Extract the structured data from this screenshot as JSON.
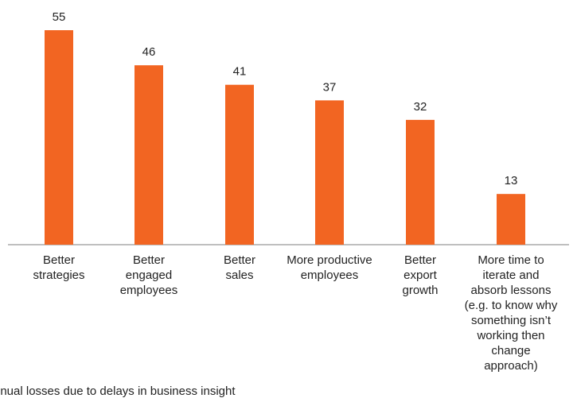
{
  "chart_data": {
    "type": "bar",
    "categories": [
      "Better\nstrategies",
      "Better\nengaged\nemployees",
      "Better\nsales",
      "More productive\nemployees",
      "Better\nexport\ngrowth",
      "More time to\niterate and\nabsorb lessons\n(e.g. to know why\nsomething isn’t\nworking then\nchange\napproach)"
    ],
    "values": [
      55,
      46,
      41,
      37,
      32,
      13
    ],
    "bar_color": "#f26522",
    "ylim": [
      0,
      60
    ],
    "grid": false,
    "legend": "none",
    "footnote": "nnual losses due to delays in business insight"
  }
}
